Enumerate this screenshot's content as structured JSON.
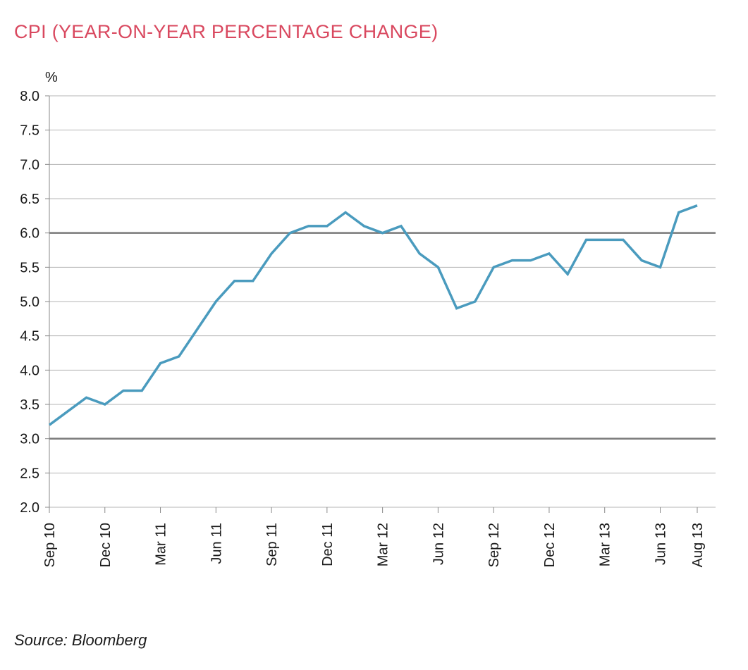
{
  "title": "CPI (YEAR-ON-YEAR PERCENTAGE CHANGE)",
  "source": "Source: Bloomberg",
  "chart_data": {
    "type": "line",
    "ylabel": "%",
    "ylim": [
      2.0,
      8.0
    ],
    "yticks": [
      "2.0",
      "2.5",
      "3.0",
      "3.5",
      "4.0",
      "4.5",
      "5.0",
      "5.5",
      "6.0",
      "6.5",
      "7.0",
      "7.5",
      "8.0"
    ],
    "reference_lines": [
      3.0,
      6.0
    ],
    "grid": true,
    "line_color": "#4a9bbe",
    "x_tick_labels": [
      "Sep 10",
      "Dec 10",
      "Mar 11",
      "Jun 11",
      "Sep 11",
      "Dec 11",
      "Mar 12",
      "Jun 12",
      "Sep 12",
      "Dec 12",
      "Mar 13",
      "Jun 13",
      "Aug 13"
    ],
    "x": [
      "Sep 10",
      "Oct 10",
      "Nov 10",
      "Dec 10",
      "Jan 11",
      "Feb 11",
      "Mar 11",
      "Apr 11",
      "May 11",
      "Jun 11",
      "Jul 11",
      "Aug 11",
      "Sep 11",
      "Oct 11",
      "Nov 11",
      "Dec 11",
      "Jan 12",
      "Feb 12",
      "Mar 12",
      "Apr 12",
      "May 12",
      "Jun 12",
      "Jul 12",
      "Aug 12",
      "Sep 12",
      "Oct 12",
      "Nov 12",
      "Dec 12",
      "Jan 13",
      "Feb 13",
      "Mar 13",
      "Apr 13",
      "May 13",
      "Jun 13",
      "Jul 13",
      "Aug 13"
    ],
    "values": [
      3.2,
      3.4,
      3.6,
      3.5,
      3.7,
      3.7,
      4.1,
      4.2,
      4.6,
      5.0,
      5.3,
      5.3,
      5.7,
      6.0,
      6.1,
      6.1,
      6.3,
      6.1,
      6.0,
      6.1,
      5.7,
      5.5,
      4.9,
      5.0,
      5.5,
      5.6,
      5.6,
      5.7,
      5.4,
      5.9,
      5.9,
      5.9,
      5.6,
      5.5,
      6.3,
      6.4
    ]
  }
}
